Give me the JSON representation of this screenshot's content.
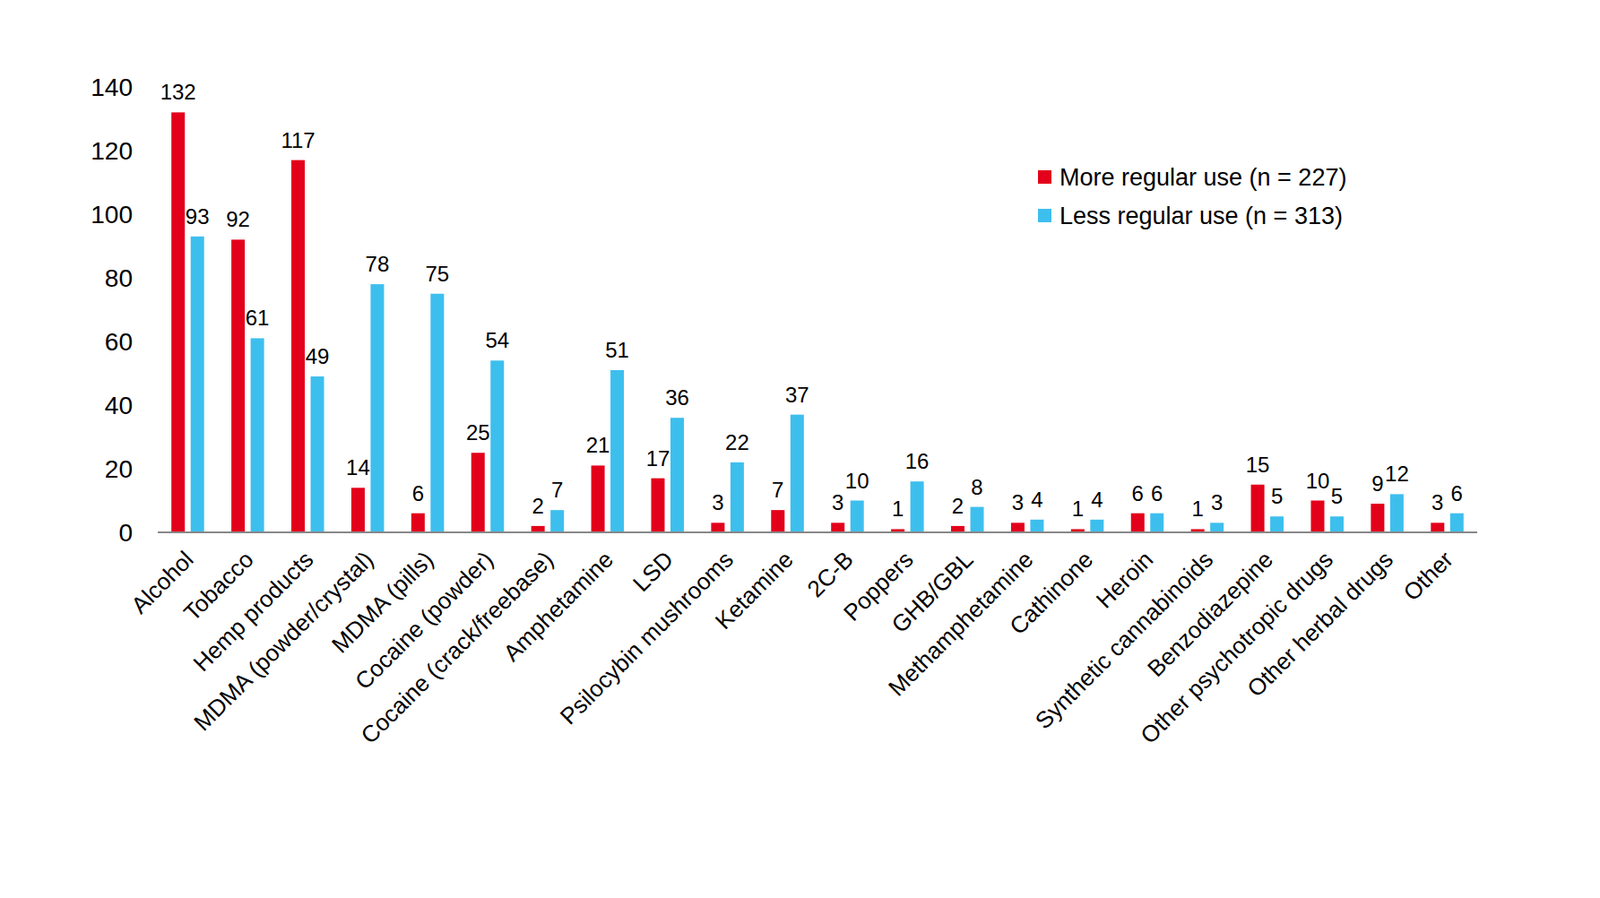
{
  "chart_data": {
    "type": "bar",
    "categories": [
      "Alcohol",
      "Tobacco",
      "Hemp products",
      "MDMA (powder/crystal)",
      "MDMA (pills)",
      "Cocaine (powder)",
      "Cocaine (crack/freebase)",
      "Amphetamine",
      "LSD",
      "Psilocybin mushrooms",
      "Ketamine",
      "2C-B",
      "Poppers",
      "GHB/GBL",
      "Methamphetamine",
      "Cathinone",
      "Heroin",
      "Synthetic cannabinoids",
      "Benzodiazepine",
      "Other psychotropic drugs",
      "Other herbal drugs",
      "Other"
    ],
    "series": [
      {
        "name": "More regular use (n = 227)",
        "color": "#e3001b",
        "values": [
          132,
          92,
          117,
          14,
          6,
          25,
          2,
          21,
          17,
          3,
          7,
          3,
          1,
          2,
          3,
          1,
          6,
          1,
          15,
          10,
          9,
          3
        ]
      },
      {
        "name": "Less regular use (n = 313)",
        "color": "#3dbfee",
        "values": [
          93,
          61,
          49,
          78,
          75,
          54,
          7,
          51,
          36,
          22,
          37,
          10,
          16,
          8,
          4,
          4,
          6,
          3,
          5,
          5,
          12,
          6
        ]
      }
    ],
    "ylim": [
      0,
      140
    ],
    "yticks": [
      0,
      20,
      40,
      60,
      80,
      100,
      120,
      140
    ],
    "grid": false,
    "legend": "upper right",
    "data_labels": true
  }
}
